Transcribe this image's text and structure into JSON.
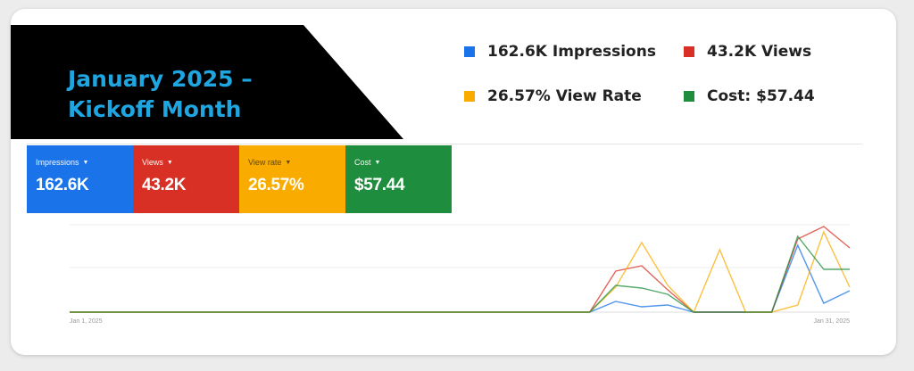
{
  "banner": {
    "line1": "January 2025 –",
    "line2": "Kickoff Month"
  },
  "legend": [
    {
      "label": "162.6K Impressions",
      "color": "#1a73e8"
    },
    {
      "label": "43.2K Views",
      "color": "#d93025"
    },
    {
      "label": "26.57% View Rate",
      "color": "#f9ab00"
    },
    {
      "label": "Cost: $57.44",
      "color": "#1e8e3e"
    }
  ],
  "metrics": [
    {
      "label": "Impressions",
      "value": "162.6K",
      "color": "#1a73e8"
    },
    {
      "label": "Views",
      "value": "43.2K",
      "color": "#d93025"
    },
    {
      "label": "View rate",
      "value": "26.57%",
      "color": "#f9ab00"
    },
    {
      "label": "Cost",
      "value": "$57.44",
      "color": "#1e8e3e"
    }
  ],
  "chart_data": {
    "type": "line",
    "x_start_label": "Jan 1, 2025",
    "x_end_label": "Jan 31, 2025",
    "x": [
      1,
      2,
      3,
      4,
      5,
      6,
      7,
      8,
      9,
      10,
      11,
      12,
      13,
      14,
      15,
      16,
      17,
      18,
      19,
      20,
      21,
      22,
      23,
      24,
      25,
      26,
      27,
      28,
      29,
      30,
      31
    ],
    "series": [
      {
        "name": "Impressions",
        "color": "#1a73e8",
        "values": [
          0,
          0,
          0,
          0,
          0,
          0,
          0,
          0,
          0,
          0,
          0,
          0,
          0,
          0,
          0,
          0,
          0,
          0,
          0,
          0,
          0,
          12,
          6,
          8,
          0,
          0,
          0,
          0,
          75,
          10,
          24
        ]
      },
      {
        "name": "Views",
        "color": "#d93025",
        "values": [
          0,
          0,
          0,
          0,
          0,
          0,
          0,
          0,
          0,
          0,
          0,
          0,
          0,
          0,
          0,
          0,
          0,
          0,
          0,
          0,
          0,
          46,
          52,
          25,
          0,
          0,
          0,
          0,
          82,
          96,
          72
        ]
      },
      {
        "name": "View rate",
        "color": "#f9ab00",
        "values": [
          0,
          0,
          0,
          0,
          0,
          0,
          0,
          0,
          0,
          0,
          0,
          0,
          0,
          0,
          0,
          0,
          0,
          0,
          0,
          0,
          0,
          28,
          78,
          30,
          0,
          70,
          0,
          0,
          8,
          90,
          28
        ]
      },
      {
        "name": "Cost",
        "color": "#1e8e3e",
        "values": [
          0,
          0,
          0,
          0,
          0,
          0,
          0,
          0,
          0,
          0,
          0,
          0,
          0,
          0,
          0,
          0,
          0,
          0,
          0,
          0,
          0,
          30,
          27,
          20,
          0,
          0,
          0,
          0,
          85,
          48,
          48
        ]
      }
    ],
    "ylim": [
      0,
      100
    ],
    "grid": true
  }
}
